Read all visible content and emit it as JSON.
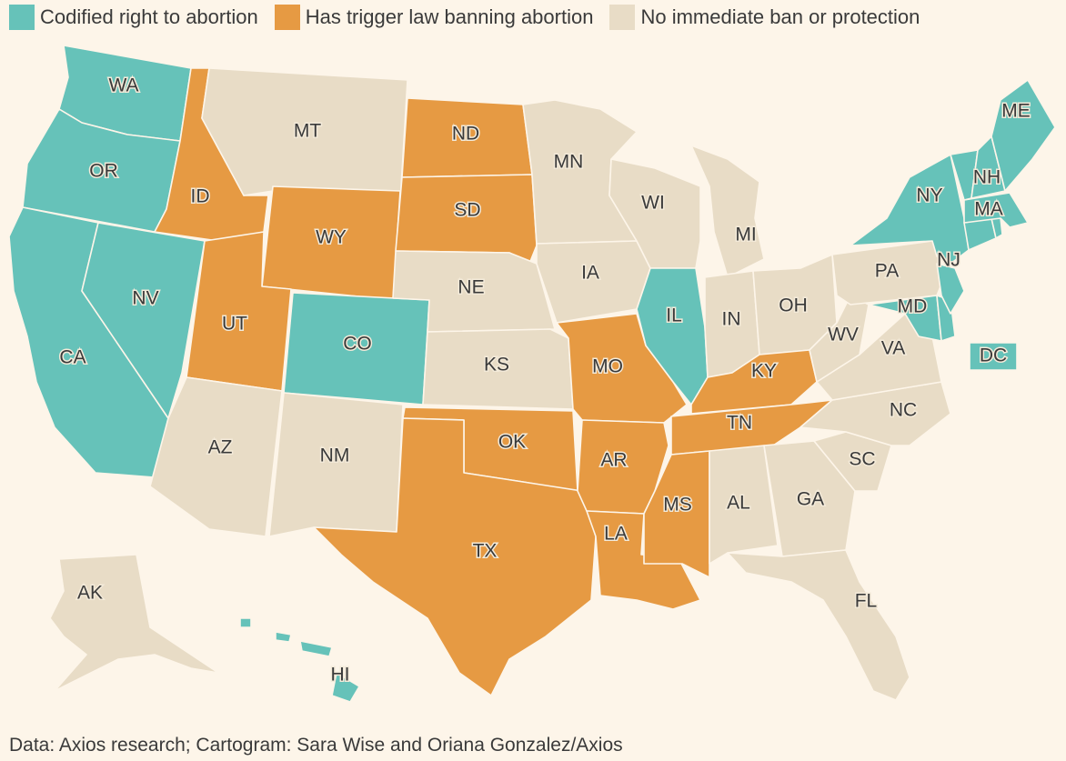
{
  "colors": {
    "codified": "#66c2b9",
    "trigger": "#e69a43",
    "none": "#e8dcc6",
    "background": "#fdf5e9"
  },
  "legend": [
    {
      "key": "codified",
      "label": "Codified right to abortion"
    },
    {
      "key": "trigger",
      "label": "Has trigger law banning abortion"
    },
    {
      "key": "none",
      "label": "No immediate ban or protection"
    }
  ],
  "states": {
    "WA": "codified",
    "OR": "codified",
    "CA": "codified",
    "NV": "codified",
    "CO": "codified",
    "IL": "codified",
    "NY": "codified",
    "ME": "codified",
    "NH": "codified",
    "MA": "codified",
    "NJ": "codified",
    "MD": "codified",
    "DE": "codified",
    "CT": "codified",
    "RI": "codified",
    "VT": "codified",
    "HI": "codified",
    "DC": "codified",
    "ID": "trigger",
    "UT": "trigger",
    "WY": "trigger",
    "ND": "trigger",
    "SD": "trigger",
    "MO": "trigger",
    "OK": "trigger",
    "TX": "trigger",
    "AR": "trigger",
    "LA": "trigger",
    "MS": "trigger",
    "TN": "trigger",
    "KY": "trigger",
    "MT": "none",
    "MN": "none",
    "WI": "none",
    "MI": "none",
    "IA": "none",
    "NE": "none",
    "KS": "none",
    "AZ": "none",
    "NM": "none",
    "AK": "none",
    "IN": "none",
    "OH": "none",
    "PA": "none",
    "WV": "none",
    "VA": "none",
    "NC": "none",
    "SC": "none",
    "GA": "none",
    "AL": "none",
    "FL": "none"
  },
  "labels": [
    "WA",
    "OR",
    "CA",
    "NV",
    "ID",
    "MT",
    "WY",
    "UT",
    "CO",
    "AZ",
    "NM",
    "ND",
    "SD",
    "NE",
    "KS",
    "OK",
    "TX",
    "MN",
    "IA",
    "MO",
    "AR",
    "LA",
    "WI",
    "IL",
    "MI",
    "IN",
    "OH",
    "KY",
    "TN",
    "MS",
    "AL",
    "GA",
    "FL",
    "SC",
    "NC",
    "VA",
    "WV",
    "PA",
    "NY",
    "NJ",
    "MD",
    "ME",
    "NH",
    "MA",
    "AK",
    "HI",
    "DC"
  ],
  "source": "Data: Axios research; Cartogram: Sara Wise and Oriana Gonzalez/Axios"
}
